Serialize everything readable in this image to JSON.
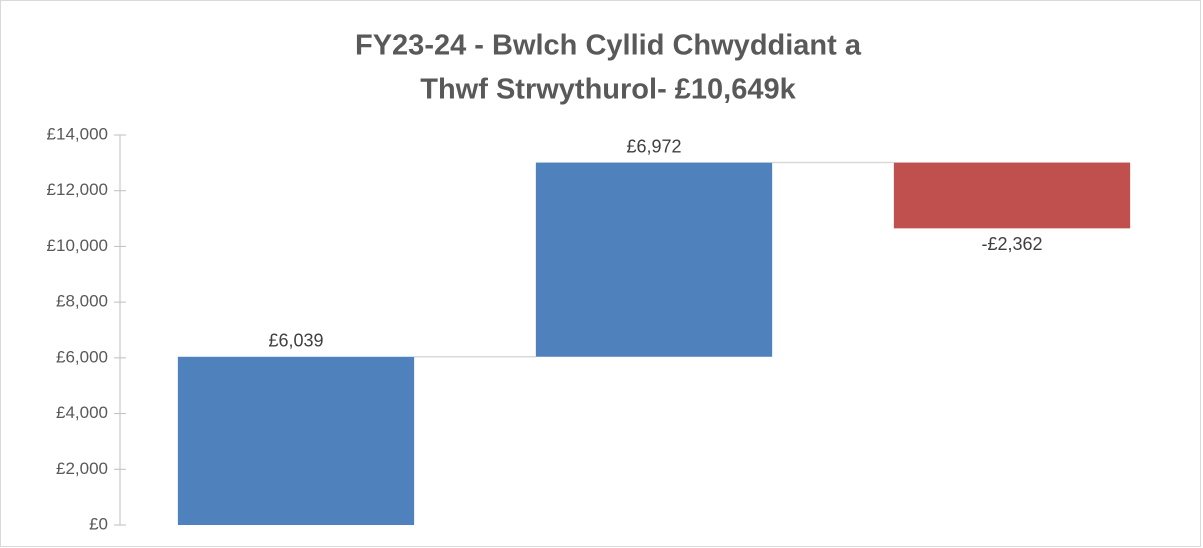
{
  "chart_data": {
    "type": "waterfall",
    "title": [
      "FY23-24 - Bwlch Cyllid Chwyddiant a",
      "Thwf Strwythurol- £10,649k"
    ],
    "categories": [
      null,
      null,
      null
    ],
    "values": [
      6039,
      6972,
      -2362
    ],
    "value_labels": [
      "£6,039",
      "£6,972",
      "-£2,362"
    ],
    "colors": [
      "#4f81bd",
      "#4f81bd",
      "#c0504d"
    ],
    "ylim": [
      0,
      14000
    ],
    "yticks": [
      {
        "value": 0,
        "label": "£0"
      },
      {
        "value": 2000,
        "label": "£2,000"
      },
      {
        "value": 4000,
        "label": "£4,000"
      },
      {
        "value": 6000,
        "label": "£6,000"
      },
      {
        "value": 8000,
        "label": "£8,000"
      },
      {
        "value": 10000,
        "label": "£10,000"
      },
      {
        "value": 12000,
        "label": "£12,000"
      },
      {
        "value": 14000,
        "label": "£14,000"
      }
    ],
    "connectors": true
  }
}
